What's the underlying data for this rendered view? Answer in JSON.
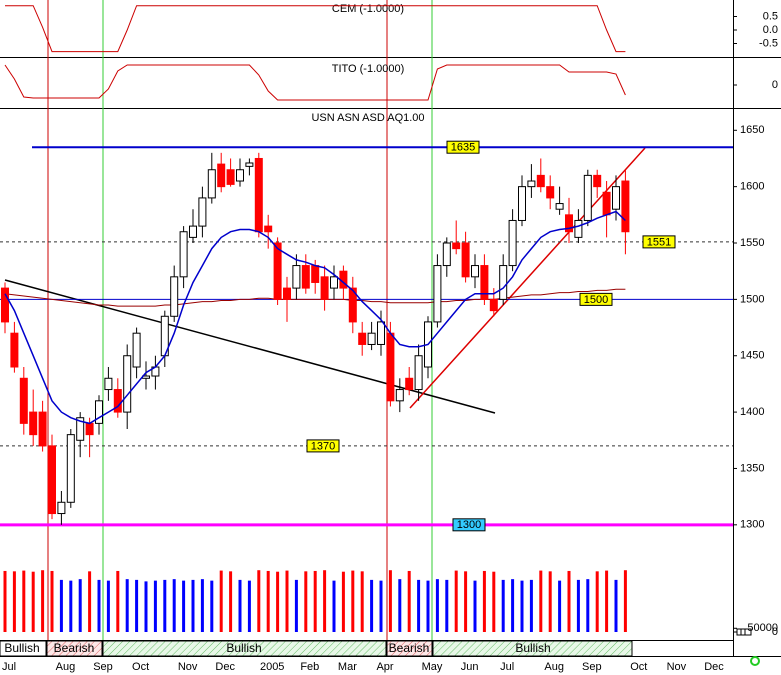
{
  "chart_data": [
    {
      "type": "line",
      "title": "CEM (-1.0000)",
      "color": "#cc0000",
      "ylim": [
        -1,
        1
      ],
      "yticks": [
        0.5,
        {
          "value": 0,
          "label": "0.0"
        },
        -0.5
      ],
      "values": [
        0.9,
        0.9,
        0.9,
        0.9,
        0.1,
        -0.8,
        -0.8,
        -0.8,
        -0.8,
        -0.8,
        -0.8,
        -0.8,
        -0.8,
        0.0,
        0.9,
        0.9,
        0.9,
        0.9,
        0.9,
        0.9,
        0.9,
        0.9,
        0.9,
        0.9,
        0.9,
        0.9,
        0.9,
        0.9,
        0.9,
        0.9,
        0.9,
        0.9,
        0.9,
        0.9,
        0.9,
        0.9,
        0.9,
        0.9,
        0.9,
        0.9,
        0.9,
        0.9,
        0.9,
        0.9,
        0.9,
        0.9,
        0.9,
        0.9,
        0.9,
        0.9,
        0.9,
        0.9,
        0.9,
        0.9,
        0.9,
        0.9,
        0.9,
        0.9,
        0.9,
        0.9,
        0.9,
        0.9,
        0.9,
        0.9,
        0.0,
        -0.8,
        -0.8,
        null,
        null,
        null,
        null,
        null,
        null,
        null,
        null,
        null,
        null,
        null
      ]
    },
    {
      "type": "line",
      "title": "TITO (-1.0000)",
      "color": "#cc0000",
      "ylim": [
        -1.1,
        1.1
      ],
      "yticks": [
        0
      ],
      "values": [
        1.0,
        0.3,
        -0.6,
        -0.65,
        -0.65,
        -0.65,
        -0.65,
        -0.65,
        -0.65,
        -0.65,
        -0.65,
        -0.2,
        0.7,
        1.0,
        1.0,
        1.0,
        1.0,
        1.0,
        1.0,
        1.0,
        1.0,
        1.0,
        1.0,
        1.0,
        1.0,
        1.0,
        1.0,
        0.5,
        -0.3,
        -0.75,
        -0.75,
        -0.75,
        -0.75,
        -0.75,
        -0.75,
        -0.75,
        -0.75,
        -0.75,
        -0.75,
        -0.75,
        -0.75,
        -0.75,
        -0.75,
        -0.75,
        -0.75,
        -0.75,
        0.8,
        1.0,
        1.0,
        1.0,
        1.0,
        1.0,
        1.0,
        1.0,
        1.0,
        1.0,
        1.0,
        1.0,
        1.0,
        1.0,
        0.65,
        0.65,
        0.65,
        0.65,
        0.65,
        0.55,
        -0.5,
        null,
        null,
        null,
        null,
        null,
        null,
        null,
        null,
        null,
        null,
        null
      ]
    },
    {
      "type": "candlestick",
      "title": "USN ASN ASD AQ1.00",
      "up_color": "#ffffff",
      "down_color": "#ff0000",
      "ylim": [
        1275,
        1668
      ],
      "yticks": [
        1300,
        1350,
        1400,
        1450,
        1500,
        1550,
        1600,
        1650
      ],
      "categories": [
        "Jul",
        null,
        null,
        null,
        null,
        null,
        "Aug",
        null,
        null,
        null,
        "Sep",
        null,
        null,
        null,
        "Oct",
        null,
        null,
        null,
        null,
        "Nov",
        null,
        null,
        null,
        "Dec",
        null,
        null,
        null,
        null,
        "2005",
        null,
        null,
        null,
        "Feb",
        null,
        null,
        null,
        "Mar",
        null,
        null,
        null,
        "Apr",
        null,
        null,
        null,
        null,
        "May",
        null,
        null,
        null,
        "Jun",
        null,
        null,
        null,
        "Jul",
        null,
        null,
        null,
        null,
        "Aug",
        null,
        null,
        null,
        "Sep",
        null,
        null,
        null,
        null,
        "Oct",
        null,
        null,
        null,
        "Nov",
        null,
        null,
        null,
        "Dec",
        null,
        null
      ],
      "open": [
        1510,
        1470,
        1430,
        1400,
        1400,
        1370,
        1310,
        1320,
        1375,
        1390,
        1390,
        1420,
        1420,
        1400,
        1440,
        1430,
        1432,
        1450,
        1485,
        1520,
        1555,
        1565,
        1590,
        1620,
        1615,
        1605,
        1618,
        1625,
        1565,
        1550,
        1510,
        1510,
        1530,
        1530,
        1520,
        1510,
        1525,
        1510,
        1470,
        1460,
        1460,
        1470,
        1410,
        1430,
        1420,
        1440,
        1480,
        1530,
        1550,
        1550,
        1520,
        1530,
        1500,
        1500,
        1530,
        1570,
        1600,
        1610,
        1600,
        1580,
        1575,
        1555,
        1570,
        1610,
        1595,
        1580,
        1605,
        null,
        null,
        null,
        null,
        null,
        null,
        null,
        null,
        null,
        null,
        null
      ],
      "high": [
        1515,
        1480,
        1440,
        1420,
        1410,
        1380,
        1330,
        1385,
        1400,
        1395,
        1415,
        1440,
        1430,
        1460,
        1475,
        1445,
        1450,
        1490,
        1530,
        1565,
        1580,
        1600,
        1630,
        1630,
        1625,
        1625,
        1625,
        1630,
        1575,
        1555,
        1520,
        1540,
        1540,
        1535,
        1530,
        1530,
        1530,
        1520,
        1480,
        1480,
        1490,
        1480,
        1430,
        1440,
        1460,
        1485,
        1540,
        1555,
        1570,
        1560,
        1540,
        1540,
        1510,
        1540,
        1580,
        1610,
        1620,
        1625,
        1610,
        1600,
        1590,
        1580,
        1615,
        1615,
        1605,
        1610,
        1615,
        null,
        null,
        null,
        null,
        null,
        null,
        null,
        null,
        null,
        null,
        null
      ],
      "low": [
        1470,
        1435,
        1380,
        1370,
        1365,
        1305,
        1300,
        1315,
        1360,
        1360,
        1380,
        1410,
        1395,
        1385,
        1430,
        1420,
        1420,
        1440,
        1480,
        1510,
        1550,
        1555,
        1585,
        1595,
        1600,
        1600,
        1610,
        1555,
        1545,
        1495,
        1480,
        1500,
        1505,
        1505,
        1490,
        1500,
        1500,
        1470,
        1450,
        1455,
        1450,
        1405,
        1400,
        1415,
        1410,
        1430,
        1475,
        1520,
        1540,
        1515,
        1510,
        1495,
        1485,
        1495,
        1525,
        1565,
        1590,
        1595,
        1580,
        1575,
        1550,
        1550,
        1565,
        1590,
        1555,
        1570,
        1540,
        null,
        null,
        null,
        null,
        null,
        null,
        null,
        null,
        null,
        null,
        null
      ],
      "close": [
        1480,
        1440,
        1390,
        1380,
        1370,
        1310,
        1320,
        1380,
        1395,
        1380,
        1410,
        1430,
        1400,
        1450,
        1470,
        1432,
        1440,
        1485,
        1520,
        1560,
        1565,
        1590,
        1615,
        1600,
        1602,
        1615,
        1621,
        1560,
        1560,
        1500,
        1500,
        1530,
        1510,
        1515,
        1500,
        1520,
        1510,
        1480,
        1460,
        1470,
        1480,
        1410,
        1420,
        1420,
        1450,
        1480,
        1530,
        1550,
        1545,
        1520,
        1530,
        1500,
        1490,
        1530,
        1570,
        1600,
        1605,
        1600,
        1590,
        1585,
        1560,
        1570,
        1610,
        1600,
        1575,
        1600,
        1560,
        null,
        null,
        null,
        null,
        null,
        null,
        null,
        null,
        null,
        null,
        null
      ],
      "lines": [
        {
          "color": "#0000cc",
          "values": [
            1505,
            1490,
            1470,
            1450,
            1430,
            1410,
            1400,
            1395,
            1392,
            1390,
            1395,
            1400,
            1405,
            1415,
            1425,
            1435,
            1440,
            1450,
            1470,
            1495,
            1515,
            1530,
            1545,
            1555,
            1560,
            1562,
            1562,
            1560,
            1555,
            1545,
            1540,
            1535,
            1533,
            1530,
            1528,
            1522,
            1515,
            1508,
            1498,
            1490,
            1482,
            1470,
            1460,
            1458,
            1458,
            1460,
            1470,
            1480,
            1490,
            1500,
            1505,
            1505,
            1505,
            1510,
            1520,
            1535,
            1545,
            1555,
            1560,
            1562,
            1563,
            1565,
            1568,
            1572,
            1575,
            1578,
            1570,
            null,
            null,
            null,
            null,
            null,
            null,
            null,
            null,
            null,
            null,
            null
          ]
        },
        {
          "color": "#990000",
          "values": [
            1505,
            1504,
            1503,
            1502,
            1501,
            1500,
            1499,
            1498,
            1497,
            1496,
            1495,
            1495,
            1494,
            1494,
            1494,
            1494,
            1494,
            1495,
            1495,
            1496,
            1497,
            1498,
            1498,
            1499,
            1499,
            1500,
            1500,
            1501,
            1501,
            1500,
            1500,
            1500,
            1500,
            1500,
            1500,
            1500,
            1500,
            1499,
            1499,
            1498,
            1498,
            1497,
            1497,
            1497,
            1497,
            1497,
            1498,
            1498,
            1499,
            1499,
            1500,
            1500,
            1500,
            1501,
            1502,
            1503,
            1504,
            1504,
            1505,
            1506,
            1506,
            1507,
            1507,
            1508,
            1508,
            1509,
            1509,
            null,
            null,
            null,
            null,
            null,
            null,
            null,
            null,
            null,
            null,
            null
          ]
        }
      ],
      "levels": [
        {
          "value": 1635,
          "color": "#0000cc",
          "width": 2,
          "dashed": false,
          "label_color": "#ffff00"
        },
        {
          "value": 1551,
          "color": "#333333",
          "width": 1,
          "dashed": true,
          "label_color": "#ffff00"
        },
        {
          "value": 1500,
          "color": "#0000cc",
          "width": 1,
          "dashed": false,
          "label_color": "#ffff00"
        },
        {
          "value": 1370,
          "color": "#333333",
          "width": 1,
          "dashed": true,
          "label_color": "#ffff00"
        },
        {
          "value": 1300,
          "color": "#ff00ff",
          "width": 3,
          "dashed": false,
          "label_color": "#33ccff"
        }
      ]
    },
    {
      "type": "bar",
      "up_color": "#0000ff",
      "down_color": "#ff0000",
      "ylim": [
        0,
        900000
      ],
      "yticks": [
        0,
        50000
      ],
      "values": [
        820000,
        815000,
        825000,
        810000,
        830000,
        820000,
        700000,
        690000,
        710000,
        815000,
        700000,
        690000,
        820000,
        710000,
        700000,
        680000,
        690000,
        700000,
        710000,
        690000,
        700000,
        710000,
        690000,
        825000,
        815000,
        700000,
        690000,
        830000,
        820000,
        810000,
        825000,
        700000,
        815000,
        820000,
        830000,
        690000,
        810000,
        825000,
        815000,
        700000,
        690000,
        830000,
        710000,
        820000,
        700000,
        690000,
        710000,
        700000,
        825000,
        815000,
        690000,
        820000,
        810000,
        700000,
        710000,
        690000,
        700000,
        825000,
        815000,
        690000,
        820000,
        700000,
        710000,
        815000,
        825000,
        700000,
        830000,
        null,
        null,
        null,
        null,
        null,
        null,
        null,
        null,
        null,
        null,
        null
      ]
    }
  ],
  "regimes": [
    "Bullish",
    "Bearish",
    "Bullish",
    "Bearish",
    "Bullish"
  ]
}
